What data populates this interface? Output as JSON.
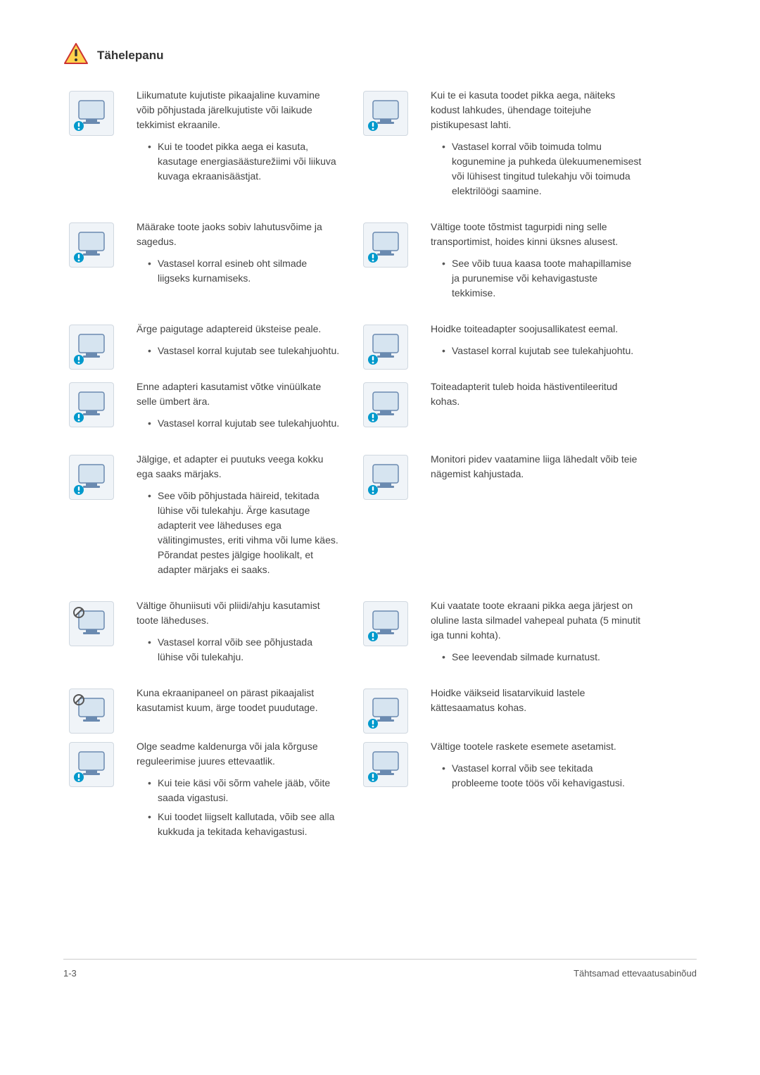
{
  "header": {
    "title": "Tähelepanu",
    "icon_fill": "#ffd24d",
    "icon_stroke": "#cc3333",
    "icon_bang": "#333333"
  },
  "colors": {
    "text": "#444444",
    "illus_bg": "#f0f4f8",
    "illus_border": "#d0d8e0",
    "monitor_fill": "#d6e4f0",
    "monitor_stroke": "#6a8ab0",
    "warn_fill": "#0099cc",
    "prohibit_stroke": "#555555"
  },
  "items": [
    {
      "left": {
        "intro": "Liikumatute kujutiste pikaajaline kuvamine võib põhjustada järelkujutiste või laikude tekkimist ekraanile.",
        "bullets": [
          "Kui te toodet pikka aega ei kasuta, kasutage energiasäästurežiimi või liikuva kuvaga ekraanisäästjat."
        ],
        "badge": "warn"
      },
      "right": {
        "intro": "Kui te ei kasuta toodet pikka aega, näiteks kodust lahkudes, ühendage toitejuhe pistikupesast lahti.",
        "bullets": [
          "Vastasel korral võib toimuda tolmu kogunemine ja puhkeda ülekuumenemisest või lühisest tingitud tulekahju või toimuda elektrilöögi saamine."
        ],
        "badge": "warn"
      }
    },
    {
      "left": {
        "intro": "Määrake toote jaoks sobiv lahutusvõime ja sagedus.",
        "bullets": [
          "Vastasel korral esineb oht silmade liigseks kurnamiseks."
        ],
        "badge": "warn"
      },
      "right": {
        "intro": "Vältige toote tõstmist tagurpidi ning selle transportimist, hoides kinni üksnes alusest.",
        "bullets": [
          "See võib tuua kaasa toote mahapillamise ja purunemise või kehavigastuste tekkimise."
        ],
        "badge": "warn"
      }
    },
    {
      "left": {
        "intro": "Ärge paigutage adaptereid üksteise peale.",
        "bullets": [
          "Vastasel korral kujutab see tulekahjuohtu."
        ],
        "badge": "warn"
      },
      "right": {
        "intro": "Hoidke toiteadapter soojusallikatest eemal.",
        "bullets": [
          "Vastasel korral kujutab see tulekahjuohtu."
        ],
        "badge": "warn"
      }
    },
    {
      "left": {
        "intro": "Enne adapteri kasutamist võtke vinüülkate selle ümbert ära.",
        "bullets": [
          "Vastasel korral kujutab see tulekahjuohtu."
        ],
        "badge": "warn"
      },
      "right": {
        "intro": "Toiteadapterit tuleb hoida hästiventileeritud kohas.",
        "bullets": [],
        "badge": "warn"
      }
    },
    {
      "left": {
        "intro": "Jälgige, et adapter ei puutuks veega kokku ega saaks märjaks.",
        "bullets": [
          "See võib põhjustada häireid, tekitada lühise või tulekahju. Ärge kasutage adapterit vee läheduses ega välitingimustes, eriti vihma või lume käes. Põrandat pestes jälgige hoolikalt, et adapter märjaks ei saaks."
        ],
        "badge": "warn"
      },
      "right": {
        "intro": "Monitori pidev vaatamine liiga lähedalt võib teie nägemist kahjustada.",
        "bullets": [],
        "badge": "warn"
      }
    },
    {
      "left": {
        "intro": "Vältige õhuniisuti või pliidi/ahju kasutamist toote läheduses.",
        "bullets": [
          "Vastasel korral võib see põhjustada lühise või tulekahju."
        ],
        "badge": "prohibit"
      },
      "right": {
        "intro": "Kui vaatate toote ekraani pikka aega järjest on oluline lasta silmadel vahepeal puhata (5 minutit iga tunni kohta).",
        "bullets": [
          "See leevendab silmade kurnatust."
        ],
        "badge": "warn"
      }
    },
    {
      "left": {
        "intro": "Kuna ekraanipaneel on pärast pikaajalist kasutamist kuum, ärge toodet puudutage.",
        "bullets": [],
        "badge": "prohibit"
      },
      "right": {
        "intro": "Hoidke väikseid lisatarvikuid lastele kättesaamatus kohas.",
        "bullets": [],
        "badge": "warn"
      }
    },
    {
      "left": {
        "intro": "Olge seadme kaldenurga või jala kõrguse reguleerimise juures ettevaatlik.",
        "bullets": [
          "Kui teie käsi või sõrm vahele jääb, võite saada vigastusi.",
          "Kui toodet liigselt kallutada, võib see alla kukkuda ja tekitada kehavigastusi."
        ],
        "badge": "warn"
      },
      "right": {
        "intro": "Vältige tootele raskete esemete asetamist.",
        "bullets": [
          "Vastasel korral võib see tekitada probleeme toote töös või kehavigastusi."
        ],
        "badge": "warn"
      }
    }
  ],
  "footer": {
    "left": "1-3",
    "right": "Tähtsamad ettevaatusabinõud"
  }
}
